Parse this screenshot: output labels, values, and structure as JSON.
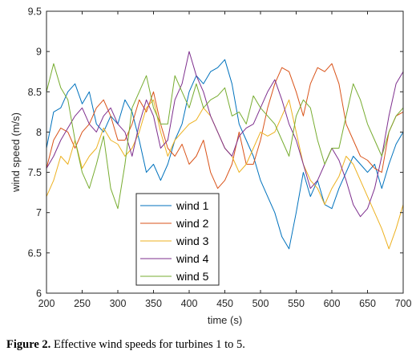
{
  "chart_data": {
    "type": "line",
    "xlabel": "time (s)",
    "ylabel": "wind speed (m/s)",
    "xlim": [
      200,
      700
    ],
    "ylim": [
      6,
      9.5
    ],
    "xticks": [
      200,
      250,
      300,
      350,
      400,
      450,
      500,
      550,
      600,
      650,
      700
    ],
    "yticks": [
      6,
      6.5,
      7,
      7.5,
      8,
      8.5,
      9,
      9.5
    ],
    "xtick_labels": [
      "200",
      "250",
      "300",
      "350",
      "400",
      "450",
      "500",
      "550",
      "600",
      "650",
      "700"
    ],
    "ytick_labels": [
      "6",
      "6.5",
      "7",
      "7.5",
      "8",
      "8.5",
      "9",
      "9.5"
    ],
    "legend_position": "lower-middle",
    "grid": false,
    "x": [
      200,
      210,
      220,
      230,
      240,
      250,
      260,
      270,
      280,
      290,
      300,
      310,
      320,
      330,
      340,
      350,
      360,
      370,
      380,
      390,
      400,
      410,
      420,
      430,
      440,
      450,
      460,
      470,
      480,
      490,
      500,
      510,
      520,
      530,
      540,
      550,
      560,
      570,
      580,
      590,
      600,
      610,
      620,
      630,
      640,
      650,
      660,
      670,
      680,
      690,
      700
    ],
    "series": [
      {
        "name": "wind 1",
        "color": "#0072BD",
        "values": [
          7.8,
          8.25,
          8.3,
          8.5,
          8.6,
          8.35,
          8.5,
          8.1,
          8.0,
          8.2,
          8.1,
          8.4,
          8.25,
          7.9,
          7.5,
          7.6,
          7.4,
          7.6,
          7.9,
          8.1,
          8.5,
          8.7,
          8.6,
          8.75,
          8.8,
          8.9,
          8.6,
          8.1,
          7.9,
          7.7,
          7.4,
          7.2,
          7.0,
          6.7,
          6.55,
          7.0,
          7.5,
          7.2,
          7.4,
          7.1,
          7.05,
          7.3,
          7.5,
          7.7,
          7.6,
          7.5,
          7.6,
          7.3,
          7.6,
          7.85,
          8.0
        ]
      },
      {
        "name": "wind 2",
        "color": "#D95319",
        "values": [
          7.55,
          7.9,
          8.05,
          8.0,
          7.8,
          8.0,
          8.1,
          8.3,
          8.4,
          8.2,
          7.9,
          7.9,
          8.1,
          8.4,
          8.25,
          8.5,
          8.1,
          7.8,
          7.7,
          7.85,
          7.6,
          7.7,
          7.9,
          7.5,
          7.3,
          7.4,
          7.6,
          8.0,
          7.6,
          7.6,
          7.9,
          8.3,
          8.6,
          8.8,
          8.75,
          8.5,
          8.2,
          8.6,
          8.8,
          8.75,
          8.85,
          8.6,
          8.1,
          7.9,
          7.7,
          7.65,
          7.55,
          7.5,
          8.0,
          8.2,
          8.25
        ]
      },
      {
        "name": "wind 3",
        "color": "#EDB120",
        "values": [
          7.2,
          7.4,
          7.7,
          7.6,
          7.9,
          7.55,
          7.7,
          7.8,
          8.05,
          7.9,
          7.85,
          7.7,
          7.8,
          8.0,
          8.3,
          8.4,
          8.0,
          7.7,
          7.9,
          8.0,
          8.1,
          8.15,
          8.3,
          8.2,
          8.0,
          7.8,
          7.7,
          7.5,
          7.6,
          7.8,
          8.0,
          7.95,
          8.0,
          8.2,
          8.4,
          8.0,
          7.6,
          7.4,
          7.3,
          7.1,
          7.3,
          7.45,
          7.7,
          7.6,
          7.4,
          7.2,
          7.0,
          6.8,
          6.55,
          6.8,
          7.1
        ]
      },
      {
        "name": "wind 4",
        "color": "#7E2F8E",
        "values": [
          7.55,
          7.7,
          7.9,
          8.05,
          8.2,
          8.3,
          8.1,
          8.0,
          8.2,
          8.3,
          8.1,
          8.0,
          7.7,
          8.1,
          8.4,
          8.2,
          7.8,
          7.9,
          8.4,
          8.6,
          9.0,
          8.7,
          8.5,
          8.2,
          8.0,
          7.8,
          7.7,
          7.95,
          8.05,
          8.1,
          8.3,
          8.5,
          8.65,
          8.4,
          8.1,
          7.9,
          7.6,
          7.3,
          7.4,
          7.6,
          7.8,
          7.65,
          7.4,
          7.1,
          6.95,
          7.05,
          7.3,
          7.7,
          8.2,
          8.6,
          8.75
        ]
      },
      {
        "name": "wind 5",
        "color": "#77AC30",
        "values": [
          8.5,
          8.85,
          8.55,
          8.4,
          7.9,
          7.5,
          7.3,
          7.6,
          7.95,
          7.3,
          7.05,
          7.6,
          8.3,
          8.5,
          8.7,
          8.3,
          8.1,
          8.1,
          8.7,
          8.5,
          8.3,
          8.6,
          8.3,
          8.4,
          8.45,
          8.55,
          8.2,
          8.25,
          8.1,
          8.45,
          8.3,
          8.2,
          8.1,
          7.9,
          7.7,
          8.2,
          8.4,
          8.3,
          7.9,
          7.6,
          7.8,
          7.8,
          8.2,
          8.6,
          8.4,
          8.1,
          7.9,
          7.7,
          8.0,
          8.2,
          8.3
        ]
      }
    ]
  },
  "caption": {
    "label": "Figure 2.",
    "text": " Effective wind speeds for turbines 1 to 5."
  }
}
